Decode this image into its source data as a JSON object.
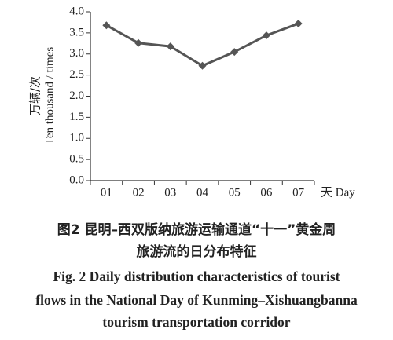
{
  "chart_data": {
    "type": "line",
    "y_label": [
      "万辆/次",
      "Ten thousand / times"
    ],
    "x_label": "天 Day",
    "categories": [
      "01",
      "02",
      "03",
      "04",
      "05",
      "06",
      "07"
    ],
    "values": [
      3.68,
      3.26,
      3.18,
      2.72,
      3.05,
      3.44,
      3.72
    ],
    "color": "#555555",
    "ylim": [
      0,
      4
    ],
    "yticks": [
      {
        "value": 0,
        "label": "0.0"
      },
      {
        "value": 0.5,
        "label": "0.5"
      },
      {
        "value": 1,
        "label": "1.0"
      },
      {
        "value": 1.5,
        "label": "1.5"
      },
      {
        "value": 2,
        "label": "2.0"
      },
      {
        "value": 2.5,
        "label": "2.5"
      },
      {
        "value": 3,
        "label": "3.0"
      },
      {
        "value": 3.5,
        "label": "3.5"
      },
      {
        "value": 4,
        "label": "4.0"
      }
    ],
    "grid": false,
    "caption_zh": [
      "图2  昆明–西双版纳旅游运输通道“十一”黄金周",
      "旅游流的日分布特征"
    ],
    "caption_en": [
      "Fig. 2   Daily distribution characteristics of tourist",
      "flows in the National Day of Kunming–Xishuangbanna",
      "tourism transportation corridor"
    ]
  }
}
